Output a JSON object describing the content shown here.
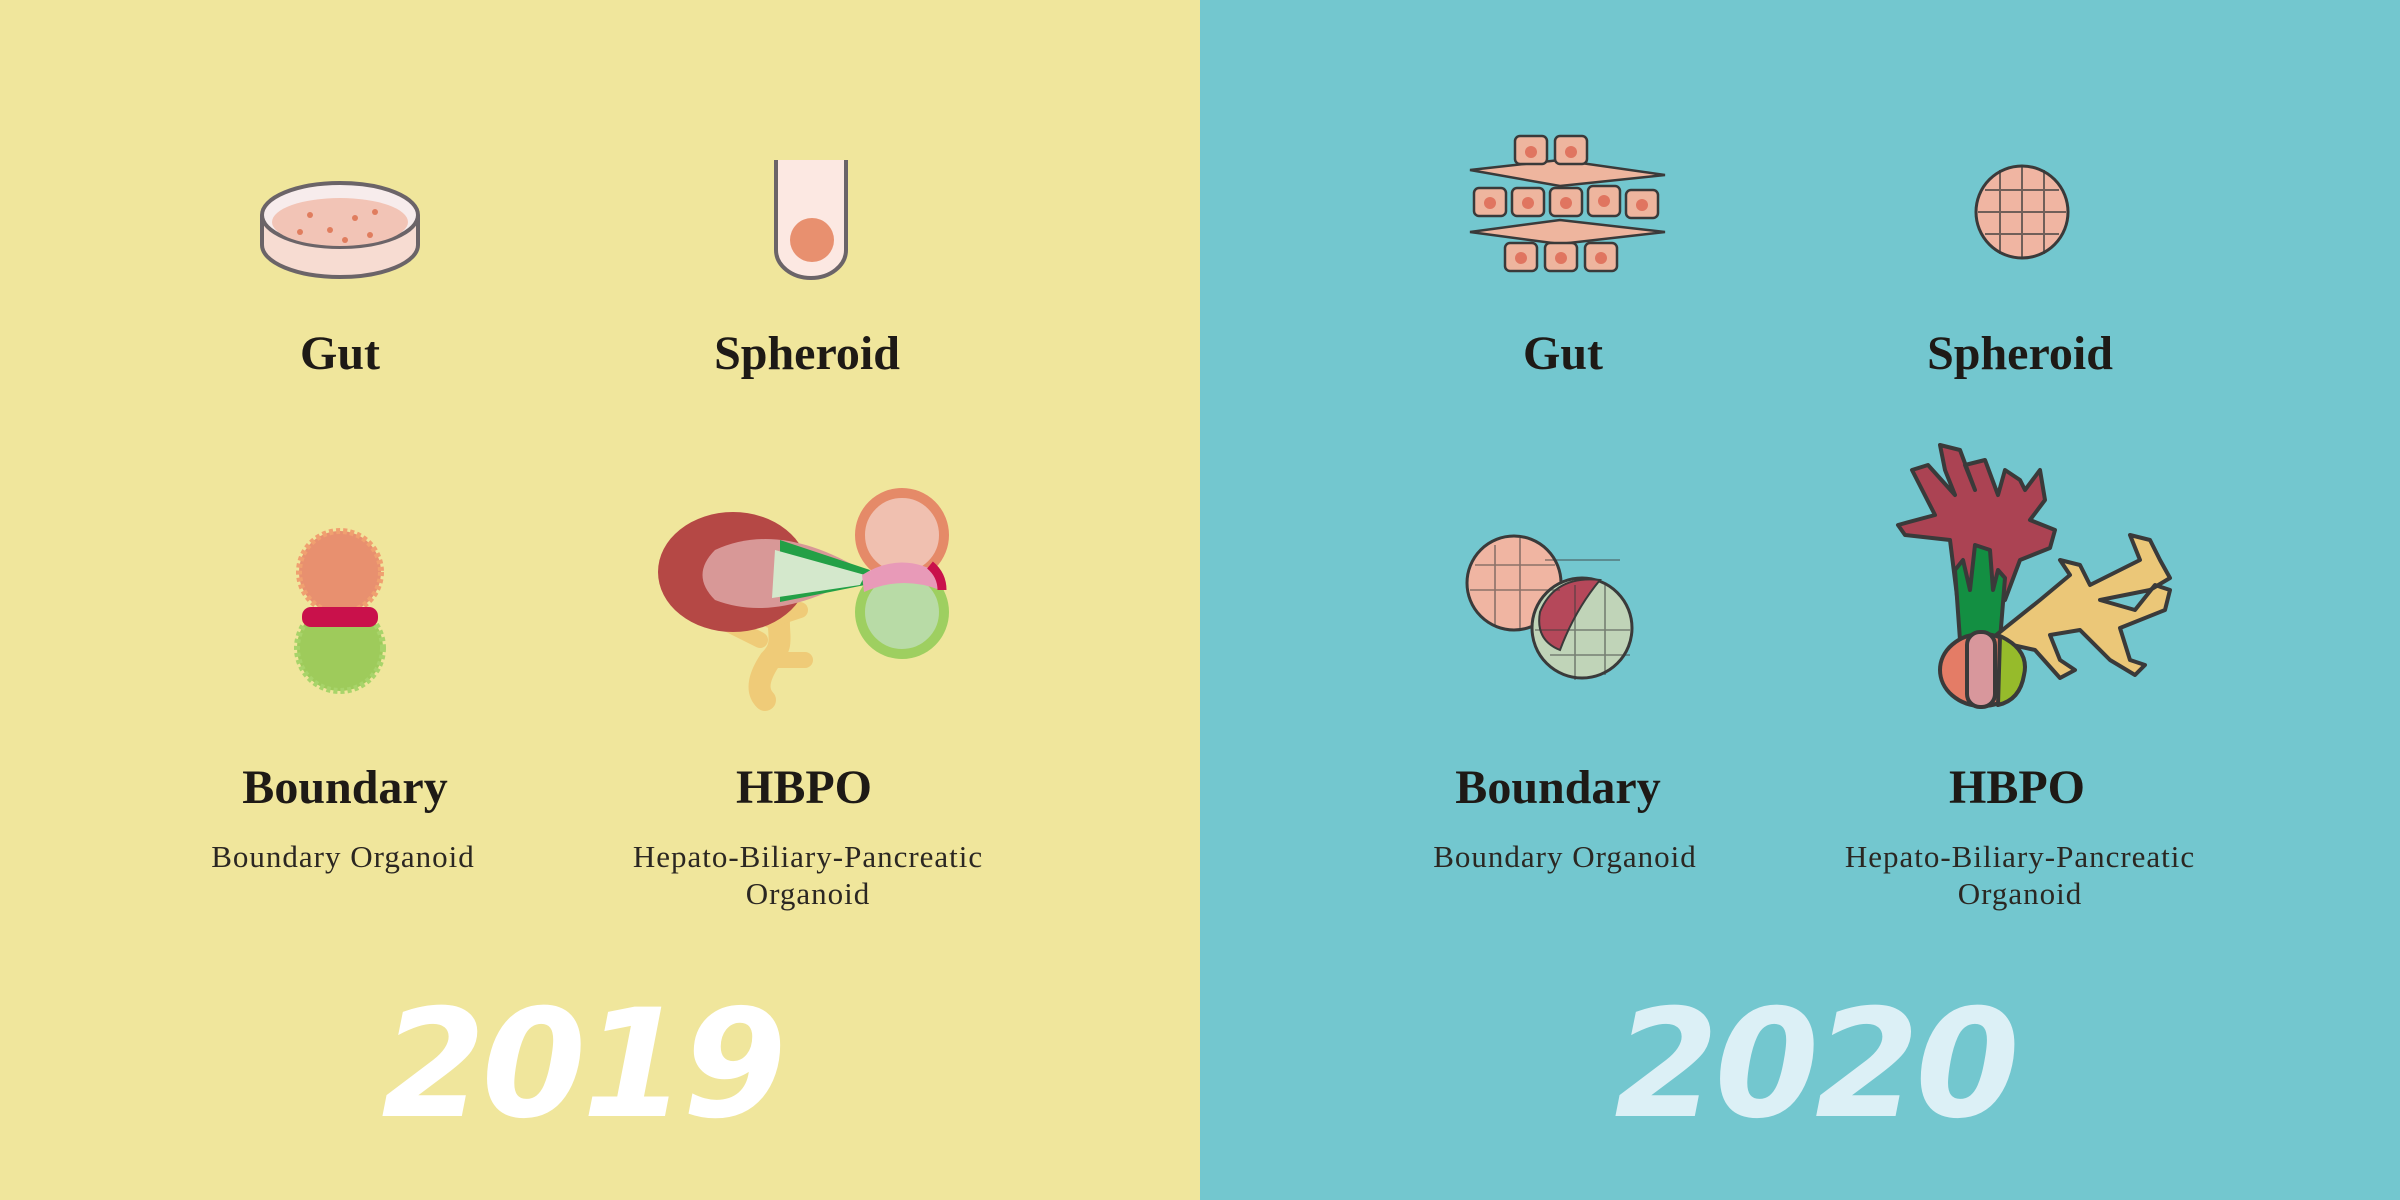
{
  "colors": {
    "left_bg": "#f0e69c",
    "right_bg": "#73c7cf",
    "year_2019": "#ffffff",
    "year_2020": "#dcf0f6"
  },
  "left": {
    "year": "2019",
    "items": [
      {
        "title": "Gut",
        "icon": "petri-dish-icon"
      },
      {
        "title": "Spheroid",
        "icon": "test-tube-spheroid-icon"
      },
      {
        "title": "Boundary",
        "subtitle": "Boundary Organoid",
        "icon": "boundary-organoid-icon"
      },
      {
        "title": "HBPO",
        "subtitle_line1": "Hepato-Biliary-Pancreatic",
        "subtitle_line2": "Organoid",
        "icon": "hbpo-organoid-icon"
      }
    ]
  },
  "right": {
    "year": "2020",
    "items": [
      {
        "title": "Gut",
        "icon": "gut-cells-icon"
      },
      {
        "title": "Spheroid",
        "icon": "spheroid-icon"
      },
      {
        "title": "Boundary",
        "subtitle": "Boundary Organoid",
        "icon": "boundary-organoid-icon"
      },
      {
        "title": "HBPO",
        "subtitle_line1": "Hepato-Biliary-Pancreatic",
        "subtitle_line2": "Organoid",
        "icon": "hbpo-organoid-icon"
      }
    ]
  }
}
